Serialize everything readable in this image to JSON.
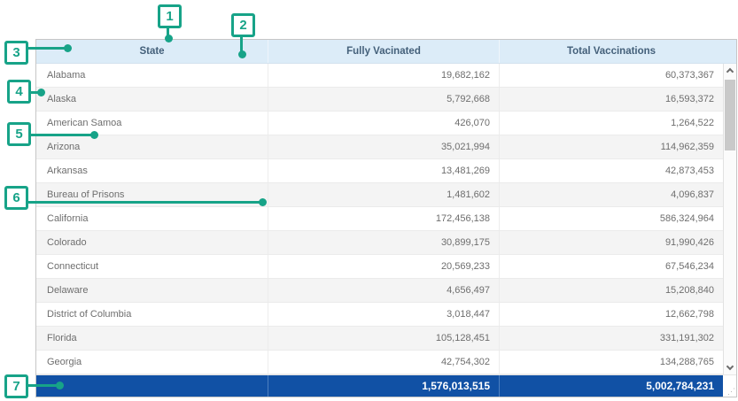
{
  "callouts": [
    {
      "label": "1"
    },
    {
      "label": "2"
    },
    {
      "label": "3"
    },
    {
      "label": "4"
    },
    {
      "label": "5"
    },
    {
      "label": "6"
    },
    {
      "label": "7"
    }
  ],
  "table": {
    "columns": {
      "state": "State",
      "fully": "Fully Vacinated",
      "total": "Total Vaccinations"
    },
    "rows": [
      {
        "state": "Alabama",
        "fully": "19,682,162",
        "total": "60,373,367"
      },
      {
        "state": "Alaska",
        "fully": "5,792,668",
        "total": "16,593,372"
      },
      {
        "state": "American Samoa",
        "fully": "426,070",
        "total": "1,264,522"
      },
      {
        "state": "Arizona",
        "fully": "35,021,994",
        "total": "114,962,359"
      },
      {
        "state": "Arkansas",
        "fully": "13,481,269",
        "total": "42,873,453"
      },
      {
        "state": "Bureau of Prisons",
        "fully": "1,481,602",
        "total": "4,096,837"
      },
      {
        "state": "California",
        "fully": "172,456,138",
        "total": "586,324,964"
      },
      {
        "state": "Colorado",
        "fully": "30,899,175",
        "total": "91,990,426"
      },
      {
        "state": "Connecticut",
        "fully": "20,569,233",
        "total": "67,546,234"
      },
      {
        "state": "Delaware",
        "fully": "4,656,497",
        "total": "15,208,840"
      },
      {
        "state": "District of Columbia",
        "fully": "3,018,447",
        "total": "12,662,798"
      },
      {
        "state": "Florida",
        "fully": "105,128,451",
        "total": "331,191,302"
      },
      {
        "state": "Georgia",
        "fully": "42,754,302",
        "total": "134,288,765"
      }
    ],
    "totals": {
      "fully": "1,576,013,515",
      "total": "5,002,784,231"
    }
  },
  "icons": {
    "resize_grip": "⋰"
  },
  "colors": {
    "annotation_teal": "#17a388",
    "header_bg": "#dcecf8",
    "totals_row_bg": "#1151a5",
    "zebra_stripe": "#f4f4f4"
  }
}
